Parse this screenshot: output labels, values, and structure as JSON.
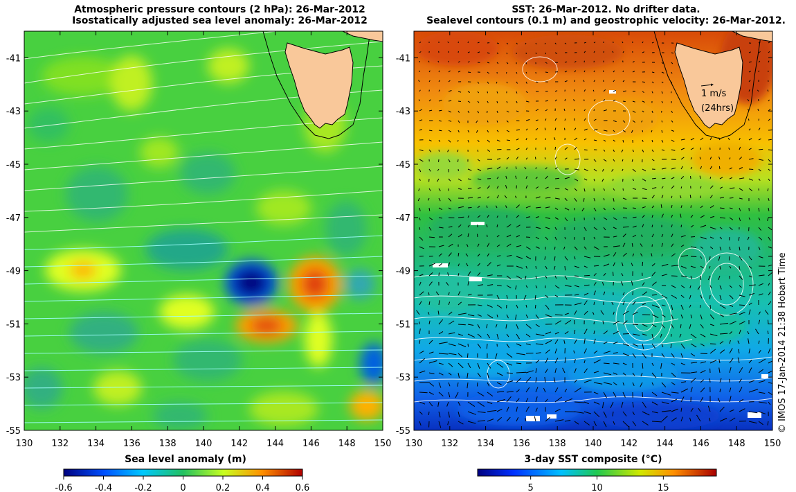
{
  "left_panel": {
    "title_line1": "Atmospheric pressure contours (2 hPa): 26-Mar-2012",
    "title_line2": "Isostatically adjusted sea level anomaly: 26-Mar-2012",
    "colorbar_label": "Sea level anomaly (m)",
    "colorbar_ticks": [
      "-0.6",
      "-0.4",
      "-0.2",
      "0",
      "0.2",
      "0.4",
      "0.6"
    ],
    "colorbar_range": [
      -0.6,
      0.6
    ]
  },
  "right_panel": {
    "title_line1": "SST: 26-Mar-2012. No drifter data.",
    "title_line2": "Sealevel contours (0.1 m) and geostrophic velocity: 26-Mar-2012.",
    "colorbar_label": "3-day SST composite (°C)",
    "colorbar_ticks": [
      "5",
      "10",
      "15"
    ],
    "colorbar_range": [
      1,
      19
    ],
    "velocity_scale_label": "1 m/s",
    "velocity_scale_sub": "(24hrs)"
  },
  "axes": {
    "lon_ticks": [
      "130",
      "132",
      "134",
      "136",
      "138",
      "140",
      "142",
      "144",
      "146",
      "148",
      "150"
    ],
    "lat_ticks": [
      "-41",
      "-43",
      "-45",
      "-47",
      "-49",
      "-51",
      "-53",
      "-55"
    ],
    "lon_range": [
      130,
      150
    ],
    "lat_range": [
      -55,
      -40
    ]
  },
  "credit": "© IMOS 17-Jan-2014 21:38 Hobart Time",
  "colors": {
    "land": "#f9c89a",
    "sla_low": "#00007f",
    "sla_zero": "#22c060",
    "sla_high": "#b00000",
    "sst_cold": "#0020a0",
    "sst_warm": "#d04000"
  }
}
